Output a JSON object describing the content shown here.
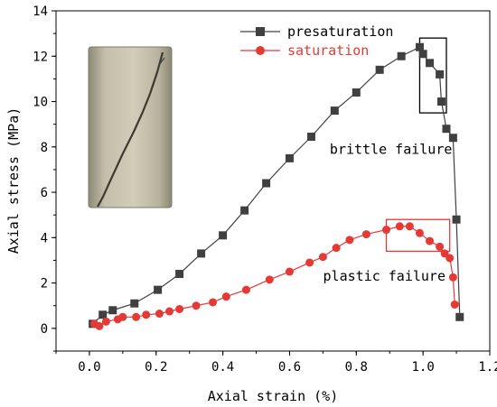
{
  "chart_data": {
    "type": "line",
    "xlabel": "Axial strain (%)",
    "ylabel": "Axial stress (MPa)",
    "xlim": [
      -0.1,
      1.2
    ],
    "ylim": [
      -1,
      14
    ],
    "xticks": [
      0.0,
      0.2,
      0.4,
      0.6,
      0.8,
      1.0,
      1.2
    ],
    "xtick_labels": [
      "0.0",
      "0.2",
      "0.4",
      "0.6",
      "0.8",
      "1.0",
      "1.2"
    ],
    "yticks": [
      0,
      2,
      4,
      6,
      8,
      10,
      12,
      14
    ],
    "ytick_labels": [
      "0",
      "2",
      "4",
      "6",
      "8",
      "10",
      "12",
      "14"
    ],
    "grid": false,
    "legend_position": "top-right",
    "series": [
      {
        "name": "presaturation",
        "color": "#404040",
        "marker": "square",
        "x": [
          0.01,
          0.04,
          0.07,
          0.135,
          0.205,
          0.27,
          0.335,
          0.4,
          0.465,
          0.53,
          0.6,
          0.665,
          0.735,
          0.8,
          0.87,
          0.935,
          0.99,
          1.0,
          1.02,
          1.05,
          1.055,
          1.07,
          1.09,
          1.1,
          1.11
        ],
        "y": [
          0.2,
          0.6,
          0.8,
          1.1,
          1.7,
          2.4,
          3.3,
          4.1,
          5.2,
          6.4,
          7.5,
          8.45,
          9.6,
          10.4,
          11.4,
          12.0,
          12.4,
          12.1,
          11.7,
          11.2,
          10.0,
          8.8,
          8.4,
          4.8,
          0.5
        ]
      },
      {
        "name": "saturation",
        "color": "#e53935",
        "marker": "circle",
        "x": [
          0.015,
          0.03,
          0.05,
          0.085,
          0.1,
          0.14,
          0.17,
          0.21,
          0.24,
          0.27,
          0.32,
          0.37,
          0.41,
          0.47,
          0.54,
          0.6,
          0.66,
          0.7,
          0.74,
          0.78,
          0.83,
          0.89,
          0.93,
          0.96,
          0.99,
          1.02,
          1.05,
          1.065,
          1.08,
          1.09,
          1.095
        ],
        "y": [
          0.2,
          0.1,
          0.3,
          0.4,
          0.5,
          0.5,
          0.6,
          0.65,
          0.75,
          0.85,
          1.0,
          1.15,
          1.4,
          1.7,
          2.15,
          2.5,
          2.9,
          3.15,
          3.55,
          3.9,
          4.15,
          4.35,
          4.5,
          4.5,
          4.2,
          3.85,
          3.6,
          3.3,
          3.1,
          2.25,
          1.05
        ]
      }
    ],
    "annotations": [
      {
        "text": "brittle failure",
        "x": 0.91,
        "y": 7.9
      },
      {
        "text": "plastic failure",
        "x": 0.89,
        "y": 2.3
      }
    ],
    "highlight_boxes": [
      {
        "color": "#000000",
        "x0": 0.99,
        "x1": 1.07,
        "y0": 9.5,
        "y1": 12.8
      },
      {
        "color": "#e53935",
        "x0": 0.89,
        "x1": 1.08,
        "y0": 3.4,
        "y1": 4.8
      }
    ]
  }
}
